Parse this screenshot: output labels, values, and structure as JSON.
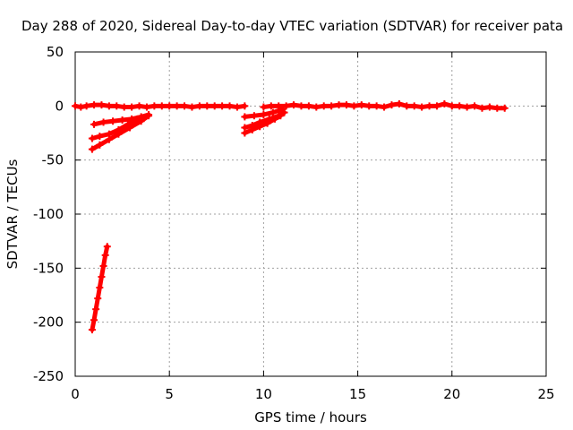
{
  "chart_data": {
    "type": "scatter",
    "title": "Day 288 of 2020, Sidereal Day-to-day VTEC variation (SDTVAR) for receiver pata",
    "xlabel": "GPS time / hours",
    "ylabel": "SDTVAR / TECUs",
    "xlim": [
      0,
      25
    ],
    "ylim": [
      -250,
      50
    ],
    "xticks": [
      0,
      5,
      10,
      15,
      20,
      25
    ],
    "yticks": [
      50,
      0,
      -50,
      -100,
      -150,
      -200,
      -250
    ],
    "grid": true,
    "series_color": "#ff0000",
    "series": [
      {
        "name": "baseline",
        "x": [
          0.0,
          0.3,
          0.6,
          1.0,
          1.4,
          1.8,
          2.2,
          2.6,
          3.0,
          3.4,
          3.8,
          4.2,
          4.6,
          5.0,
          5.4,
          5.8,
          6.2,
          6.6,
          7.0,
          7.4,
          7.8,
          8.2,
          8.6,
          9.0,
          10.0,
          10.4,
          10.8,
          11.2,
          11.6,
          12.0,
          12.4,
          12.8,
          13.2,
          13.6,
          14.0,
          14.4,
          14.8,
          15.2,
          15.6,
          16.0,
          16.4,
          16.8,
          17.2,
          17.6,
          18.0,
          18.4,
          18.8,
          19.2,
          19.6,
          20.0,
          20.4,
          20.8,
          21.2,
          21.6,
          22.0,
          22.4,
          22.8
        ],
        "y": [
          0,
          -1,
          0,
          1,
          1,
          0,
          0,
          -1,
          -1,
          0,
          -1,
          0,
          0,
          0,
          0,
          0,
          -1,
          0,
          0,
          0,
          0,
          0,
          -1,
          0,
          -1,
          0,
          0,
          0,
          1,
          0,
          0,
          -1,
          0,
          0,
          1,
          1,
          0,
          1,
          0,
          0,
          -1,
          1,
          2,
          0,
          0,
          -1,
          0,
          0,
          2,
          0,
          0,
          -1,
          0,
          -2,
          -1,
          -2,
          -2
        ]
      },
      {
        "name": "arc-1",
        "x": [
          1.0,
          1.5,
          2.0,
          2.5,
          3.0,
          3.5,
          3.9
        ],
        "y": [
          -17,
          -15,
          -14,
          -13,
          -12,
          -10,
          -8
        ]
      },
      {
        "name": "arc-2",
        "x": [
          0.9,
          1.3,
          1.8,
          2.3,
          2.8,
          3.3
        ],
        "y": [
          -30,
          -28,
          -26,
          -22,
          -17,
          -12
        ]
      },
      {
        "name": "arc-3",
        "x": [
          0.9,
          1.3,
          1.8,
          2.3,
          2.9,
          3.5,
          3.9
        ],
        "y": [
          -40,
          -36,
          -31,
          -26,
          -20,
          -14,
          -9
        ]
      },
      {
        "name": "arc-4",
        "x": [
          9.0,
          9.5,
          10.0,
          10.5,
          11.0
        ],
        "y": [
          -10,
          -9,
          -8,
          -6,
          -3
        ]
      },
      {
        "name": "arc-5",
        "x": [
          9.0,
          9.4,
          9.8,
          10.3,
          10.8,
          11.1
        ],
        "y": [
          -20,
          -18,
          -15,
          -12,
          -9,
          -6
        ]
      },
      {
        "name": "arc-6",
        "x": [
          9.0,
          9.4,
          9.8,
          10.2,
          10.6,
          10.9
        ],
        "y": [
          -25,
          -22,
          -19,
          -16,
          -12,
          -9
        ]
      },
      {
        "name": "steep-arc",
        "x": [
          0.9,
          1.0,
          1.1,
          1.2,
          1.3,
          1.4,
          1.5,
          1.6,
          1.7
        ],
        "y": [
          -207,
          -198,
          -188,
          -178,
          -168,
          -158,
          -148,
          -138,
          -130
        ]
      }
    ]
  }
}
